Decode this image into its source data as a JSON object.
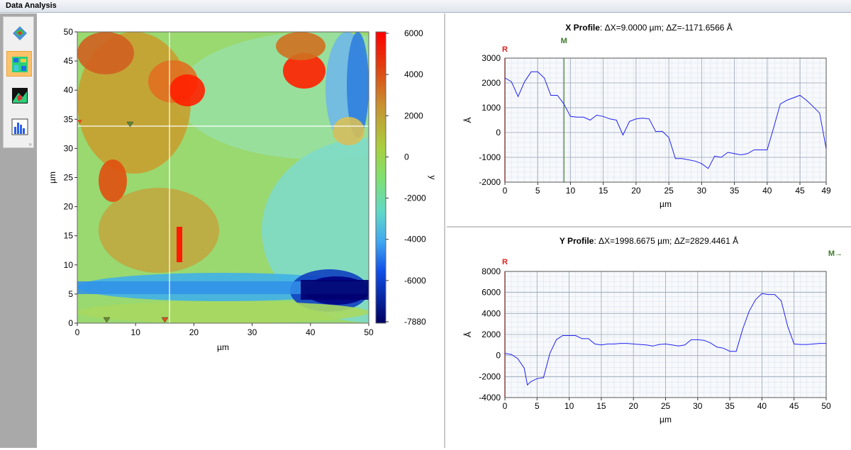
{
  "window": {
    "title": "Data Analysis"
  },
  "toolbar": {
    "tools": [
      {
        "name": "3d-view-icon",
        "active": false
      },
      {
        "name": "heatmap-view-icon",
        "active": true
      },
      {
        "name": "3d-surface-icon",
        "active": false
      },
      {
        "name": "histogram-icon",
        "active": false
      }
    ]
  },
  "heatmap": {
    "xlabel": "µm",
    "ylabel": "µm",
    "xticks": [
      "0",
      "10",
      "20",
      "30",
      "40",
      "50"
    ],
    "yticks": [
      "0",
      "5",
      "10",
      "15",
      "20",
      "25",
      "30",
      "35",
      "40",
      "45",
      "50"
    ],
    "colorbar_label": "y",
    "colorbar_ticks": [
      "6000",
      "4000",
      "2000",
      "0",
      "-2000",
      "-4000",
      "-6000",
      "-7880"
    ],
    "colors": {
      "max": "#ff1a00",
      "high": "#d2691e",
      "mid": "#9acd32",
      "low": "#7fdfb0",
      "cool": "#4ab0e8",
      "min": "#00007a"
    }
  },
  "xprofile": {
    "title_bold": "X Profile",
    "title_rest": ": ΔX=9.0000 µm; ΔZ=-1171.6566 Å",
    "marker_r": "R",
    "marker_m": "M"
  },
  "yprofile": {
    "title_bold": "Y Profile",
    "title_rest": ": ΔX=1998.6675 µm; ΔZ=2829.4461 Å",
    "marker_r": "R",
    "marker_m": "M→"
  },
  "chart_data": [
    {
      "type": "line",
      "title": "X Profile: ΔX=9.0000 µm; ΔZ=-1171.6566 Å",
      "xlabel": "µm",
      "ylabel": "Å",
      "xlim": [
        0,
        49
      ],
      "ylim": [
        -2000,
        3000
      ],
      "xticks": [
        "0",
        "5",
        "10",
        "15",
        "20",
        "25",
        "30",
        "35",
        "40",
        "45",
        "49"
      ],
      "yticks": [
        "3000",
        "2000",
        "1000",
        "0",
        "-1000",
        "-2000"
      ],
      "grid": true,
      "color": "#2222ee",
      "series": [
        {
          "x": [
            0,
            1,
            2,
            3,
            4,
            5,
            6,
            7,
            8,
            9,
            10,
            11,
            12,
            13,
            14,
            15,
            16,
            17,
            18,
            19,
            20,
            21,
            22,
            23,
            24,
            25,
            26,
            27,
            28,
            29,
            30,
            31,
            32,
            33,
            34,
            35,
            36,
            37,
            38,
            39,
            40,
            41,
            42,
            43,
            44,
            45,
            46,
            47,
            48,
            49
          ],
          "values": [
            2200,
            2050,
            1450,
            2050,
            2450,
            2450,
            2200,
            1500,
            1500,
            1150,
            650,
            620,
            620,
            500,
            700,
            650,
            550,
            500,
            -100,
            450,
            550,
            580,
            550,
            40,
            50,
            -200,
            -1050,
            -1050,
            -1100,
            -1150,
            -1250,
            -1450,
            -950,
            -1000,
            -800,
            -850,
            -900,
            -850,
            -700,
            -700,
            -700,
            200,
            1150,
            1300,
            1400,
            1500,
            1300,
            1050,
            780,
            -650
          ]
        }
      ],
      "cursor_x": 9
    },
    {
      "type": "line",
      "title": "Y Profile: ΔX=1998.6675 µm; ΔZ=2829.4461 Å",
      "xlabel": "µm",
      "ylabel": "Å",
      "xlim": [
        0,
        50
      ],
      "ylim": [
        -4000,
        8000
      ],
      "xticks": [
        "0",
        "5",
        "10",
        "15",
        "20",
        "25",
        "30",
        "35",
        "40",
        "45",
        "50"
      ],
      "yticks": [
        "8000",
        "6000",
        "4000",
        "2000",
        "0",
        "-2000",
        "-4000"
      ],
      "grid": true,
      "color": "#2222ee",
      "series": [
        {
          "x": [
            0,
            1,
            2,
            3,
            3.5,
            4,
            5,
            6,
            7,
            8,
            9,
            10,
            11,
            12,
            13,
            14,
            15,
            16,
            17,
            18,
            19,
            20,
            21,
            22,
            23,
            24,
            25,
            26,
            27,
            28,
            29,
            30,
            31,
            32,
            33,
            34,
            35,
            36,
            37,
            38,
            39,
            40,
            41,
            42,
            43,
            44,
            45,
            46,
            47,
            48,
            49,
            50
          ],
          "values": [
            200,
            100,
            -300,
            -1200,
            -2800,
            -2500,
            -2200,
            -2100,
            200,
            1500,
            1900,
            1900,
            1900,
            1600,
            1600,
            1100,
            1000,
            1100,
            1100,
            1150,
            1150,
            1100,
            1050,
            1000,
            900,
            1050,
            1100,
            1000,
            900,
            1000,
            1500,
            1500,
            1450,
            1200,
            800,
            700,
            400,
            400,
            2500,
            4200,
            5300,
            5900,
            5800,
            5800,
            5200,
            2800,
            1100,
            1050,
            1050,
            1100,
            1150,
            1150
          ]
        }
      ]
    }
  ]
}
